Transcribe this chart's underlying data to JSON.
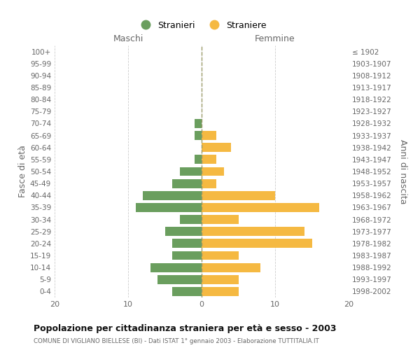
{
  "age_groups": [
    "100+",
    "95-99",
    "90-94",
    "85-89",
    "80-84",
    "75-79",
    "70-74",
    "65-69",
    "60-64",
    "55-59",
    "50-54",
    "45-49",
    "40-44",
    "35-39",
    "30-34",
    "25-29",
    "20-24",
    "15-19",
    "10-14",
    "5-9",
    "0-4"
  ],
  "birth_years": [
    "≤ 1902",
    "1903-1907",
    "1908-1912",
    "1913-1917",
    "1918-1922",
    "1923-1927",
    "1928-1932",
    "1933-1937",
    "1938-1942",
    "1943-1947",
    "1948-1952",
    "1953-1957",
    "1958-1962",
    "1963-1967",
    "1968-1972",
    "1973-1977",
    "1978-1982",
    "1983-1987",
    "1988-1992",
    "1993-1997",
    "1998-2002"
  ],
  "maschi": [
    0,
    0,
    0,
    0,
    0,
    0,
    1,
    1,
    0,
    1,
    3,
    4,
    8,
    9,
    3,
    5,
    4,
    4,
    7,
    6,
    4
  ],
  "femmine": [
    0,
    0,
    0,
    0,
    0,
    0,
    0,
    2,
    4,
    2,
    3,
    2,
    10,
    16,
    5,
    14,
    15,
    5,
    8,
    5,
    5
  ],
  "color_maschi": "#6a9e5e",
  "color_femmine": "#f5b942",
  "xlim": 20,
  "title": "Popolazione per cittadinanza straniera per età e sesso - 2003",
  "subtitle": "COMUNE DI VIGLIANO BIELLESE (BI) - Dati ISTAT 1° gennaio 2003 - Elaborazione TUTTITALIA.IT",
  "ylabel_left": "Fasce di età",
  "ylabel_right": "Anni di nascita",
  "label_maschi": "Stranieri",
  "label_femmine": "Straniere",
  "header_maschi": "Maschi",
  "header_femmine": "Femmine",
  "background_color": "#ffffff",
  "grid_color": "#cccccc"
}
